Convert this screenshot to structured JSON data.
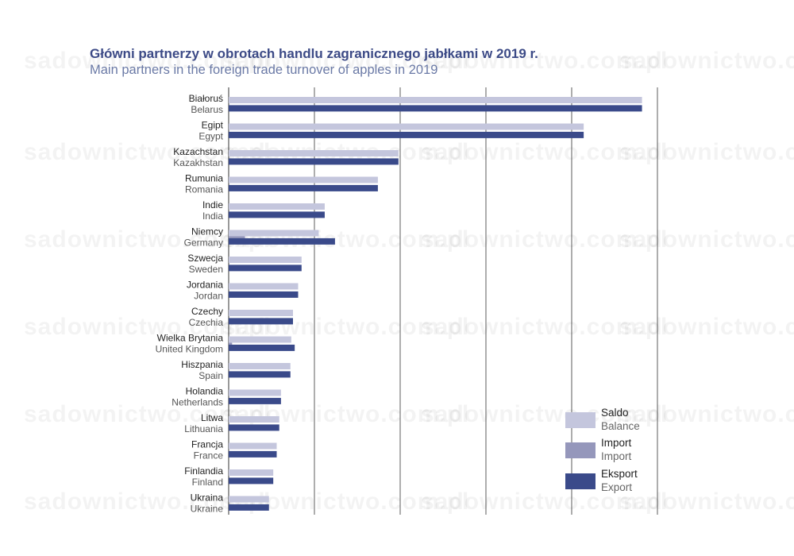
{
  "title": "Główni partnerzy w obrotach handlu zagranicznego jabłkami w 2019 r.",
  "subtitle": "Main partners in the foreign trade turnover of apples in 2019",
  "watermark": "sadownictwo.com.pl",
  "colors": {
    "saldo": "#c4c6dd",
    "import": "#9597bb",
    "eksport": "#3a4a8a",
    "grid": "#333333"
  },
  "chart_data": {
    "type": "bar",
    "orientation": "horizontal",
    "title": "Główni partnerzy w obrotach handlu zagranicznego jabłkami w 2019 r.",
    "subtitle": "Main partners in the foreign trade turnover of apples in 2019",
    "xlim": [
      0,
      5
    ],
    "grid": true,
    "legend_position": "bottom-right",
    "categories": [
      {
        "pl": "Białoruś",
        "en": "Belarus"
      },
      {
        "pl": "Egipt",
        "en": "Egypt"
      },
      {
        "pl": "Kazachstan",
        "en": "Kazakhstan"
      },
      {
        "pl": "Rumunia",
        "en": "Romania"
      },
      {
        "pl": "Indie",
        "en": "India"
      },
      {
        "pl": "Niemcy",
        "en": "Germany"
      },
      {
        "pl": "Szwecja",
        "en": "Sweden"
      },
      {
        "pl": "Jordania",
        "en": "Jordan"
      },
      {
        "pl": "Czechy",
        "en": "Czechia"
      },
      {
        "pl": "Wielka Brytania",
        "en": "United Kingdom"
      },
      {
        "pl": "Hiszpania",
        "en": "Spain"
      },
      {
        "pl": "Holandia",
        "en": "Netherlands"
      },
      {
        "pl": "Litwa",
        "en": "Lithuania"
      },
      {
        "pl": "Francja",
        "en": "France"
      },
      {
        "pl": "Finlandia",
        "en": "Finland"
      },
      {
        "pl": "Ukraina",
        "en": "Ukraine"
      }
    ],
    "series": [
      {
        "key": "saldo",
        "name": "Saldo",
        "name_en": "Balance",
        "values": [
          4.82,
          4.14,
          1.98,
          1.74,
          1.12,
          1.05,
          0.85,
          0.81,
          0.75,
          0.73,
          0.72,
          0.61,
          0.59,
          0.56,
          0.52,
          0.47
        ]
      },
      {
        "key": "import",
        "name": "Import",
        "name_en": "Import",
        "values": [
          0,
          0,
          0,
          0,
          0,
          0.19,
          0,
          0,
          0,
          0.04,
          0,
          0,
          0,
          0,
          0,
          0
        ]
      },
      {
        "key": "eksport",
        "name": "Eksport",
        "name_en": "Export",
        "values": [
          4.82,
          4.14,
          1.98,
          1.74,
          1.12,
          1.24,
          0.85,
          0.81,
          0.75,
          0.77,
          0.72,
          0.61,
          0.59,
          0.56,
          0.52,
          0.47
        ]
      }
    ]
  }
}
